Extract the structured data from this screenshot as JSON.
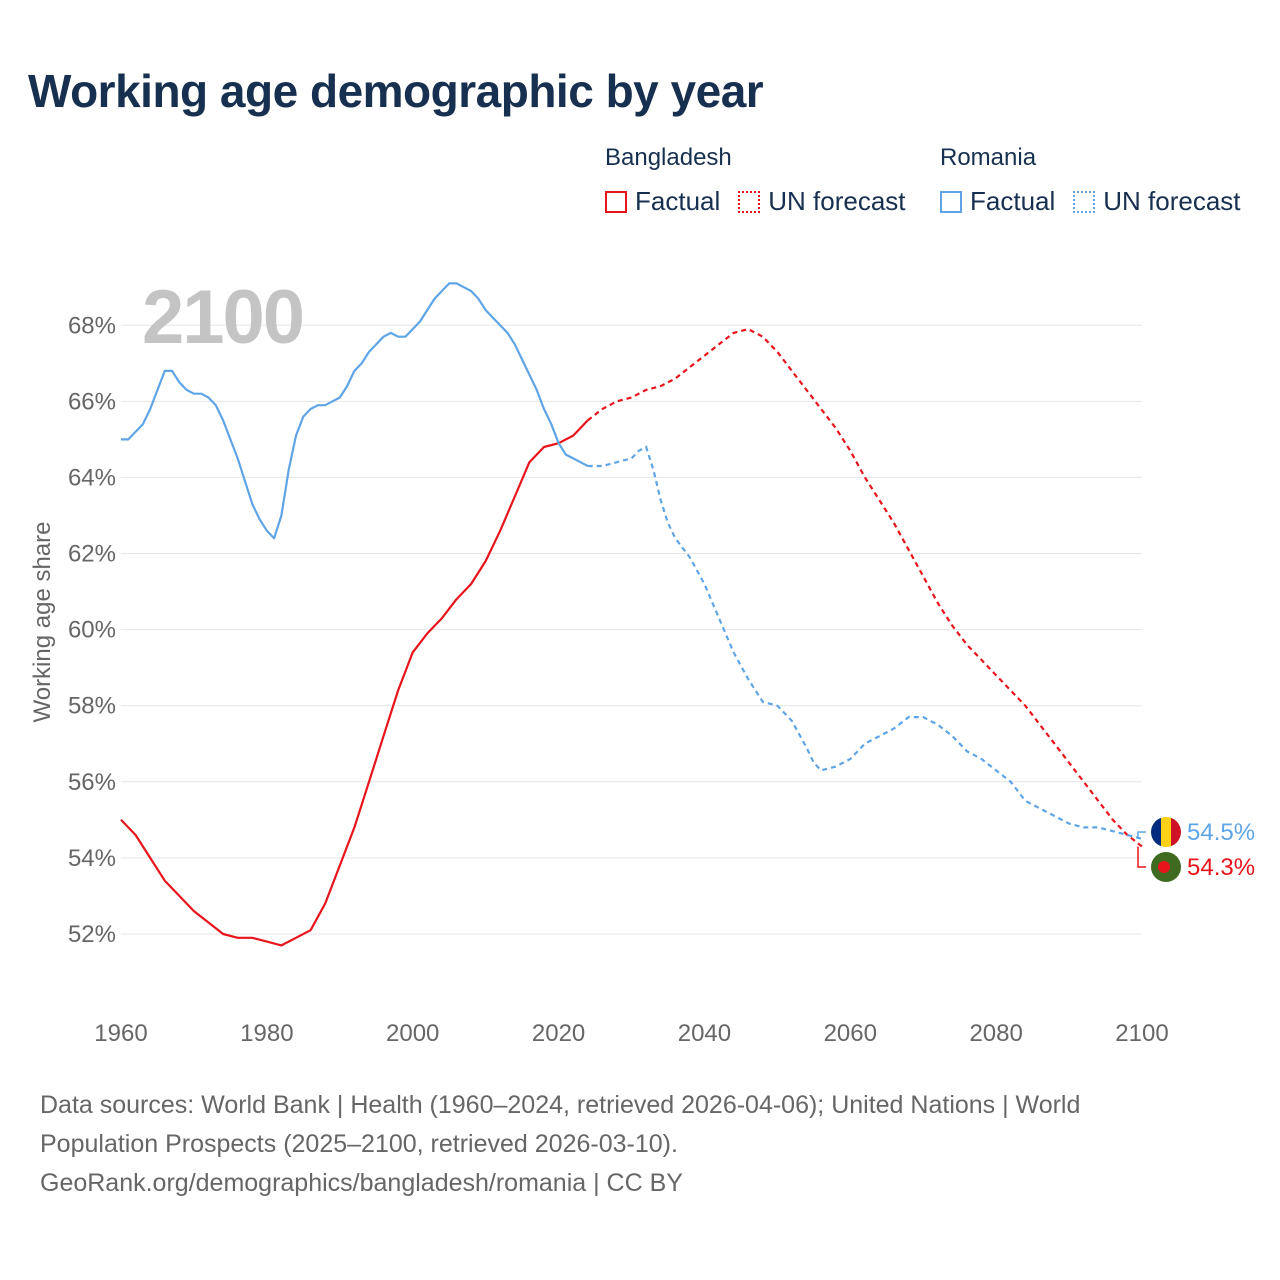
{
  "title": "Working age demographic by year",
  "legend": {
    "bangladesh": {
      "country": "Bangladesh",
      "factual": "Factual",
      "forecast": "UN forecast",
      "color": "#e8141c"
    },
    "romania": {
      "country": "Romania",
      "factual": "Factual",
      "forecast": "UN forecast",
      "color": "#5fa5e6"
    }
  },
  "year_watermark": "2100",
  "source": {
    "line1": "Data sources: World Bank | Health (1960–2024, retrieved 2026-04-06); United Nations | World",
    "line2": "Population Prospects (2025–2100, retrieved 2026-03-10).",
    "line3": "GeoRank.org/demographics/bangladesh/romania | CC BY"
  },
  "chart_data": {
    "type": "line",
    "title": "Working age demographic by year",
    "xlabel": "",
    "ylabel": "Working age share",
    "xlim": [
      1960,
      2100
    ],
    "ylim": [
      51,
      69.4
    ],
    "x_ticks": [
      1960,
      1980,
      2000,
      2020,
      2040,
      2060,
      2080,
      2100
    ],
    "y_ticks": [
      52,
      54,
      56,
      58,
      60,
      62,
      64,
      66,
      68
    ],
    "y_tick_labels": [
      "52%",
      "54%",
      "56%",
      "58%",
      "60%",
      "62%",
      "64%",
      "66%",
      "68%"
    ],
    "grid": true,
    "legend_position": "top-right",
    "series": [
      {
        "name": "Bangladesh",
        "color": "#e8141c",
        "end_label": "54.3%",
        "factual": {
          "x": [
            1960,
            1962,
            1964,
            1966,
            1968,
            1970,
            1972,
            1974,
            1976,
            1978,
            1980,
            1982,
            1984,
            1986,
            1988,
            1990,
            1992,
            1994,
            1996,
            1998,
            2000,
            2002,
            2004,
            2006,
            2008,
            2010,
            2012,
            2014,
            2016,
            2018,
            2020,
            2022,
            2024
          ],
          "y": [
            55.0,
            54.6,
            54.0,
            53.4,
            53.0,
            52.6,
            52.3,
            52.0,
            51.9,
            51.9,
            51.8,
            51.7,
            51.9,
            52.1,
            52.8,
            53.8,
            54.8,
            56.0,
            57.2,
            58.4,
            59.4,
            59.9,
            60.3,
            60.8,
            61.2,
            61.8,
            62.6,
            63.5,
            64.4,
            64.8,
            64.9,
            65.1,
            65.5
          ]
        },
        "forecast": {
          "x": [
            2024,
            2026,
            2028,
            2030,
            2032,
            2034,
            2036,
            2038,
            2040,
            2042,
            2044,
            2046,
            2048,
            2050,
            2052,
            2054,
            2056,
            2058,
            2060,
            2062,
            2064,
            2066,
            2068,
            2070,
            2072,
            2074,
            2076,
            2078,
            2080,
            2082,
            2084,
            2086,
            2088,
            2090,
            2092,
            2094,
            2096,
            2098,
            2100
          ],
          "y": [
            65.5,
            65.8,
            66.0,
            66.1,
            66.3,
            66.4,
            66.6,
            66.9,
            67.2,
            67.5,
            67.8,
            67.9,
            67.7,
            67.3,
            66.8,
            66.3,
            65.8,
            65.3,
            64.7,
            64.0,
            63.4,
            62.8,
            62.1,
            61.4,
            60.7,
            60.1,
            59.6,
            59.2,
            58.8,
            58.4,
            58.0,
            57.5,
            57.0,
            56.5,
            56.0,
            55.5,
            55.0,
            54.6,
            54.3
          ]
        }
      },
      {
        "name": "Romania",
        "color": "#5fa5e6",
        "end_label": "54.5%",
        "factual": {
          "x": [
            1960,
            1961,
            1962,
            1963,
            1964,
            1965,
            1966,
            1967,
            1968,
            1969,
            1970,
            1971,
            1972,
            1973,
            1974,
            1975,
            1976,
            1977,
            1978,
            1979,
            1980,
            1981,
            1982,
            1983,
            1984,
            1985,
            1986,
            1987,
            1988,
            1989,
            1990,
            1991,
            1992,
            1993,
            1994,
            1995,
            1996,
            1997,
            1998,
            1999,
            2000,
            2001,
            2002,
            2003,
            2004,
            2005,
            2006,
            2007,
            2008,
            2009,
            2010,
            2011,
            2012,
            2013,
            2014,
            2015,
            2016,
            2017,
            2018,
            2019,
            2020,
            2021,
            2022,
            2023,
            2024
          ],
          "y": [
            65.0,
            65.0,
            65.2,
            65.4,
            65.8,
            66.3,
            66.8,
            66.8,
            66.5,
            66.3,
            66.2,
            66.2,
            66.1,
            65.9,
            65.5,
            65.0,
            64.5,
            63.9,
            63.3,
            62.9,
            62.6,
            62.4,
            63.0,
            64.2,
            65.1,
            65.6,
            65.8,
            65.9,
            65.9,
            66.0,
            66.1,
            66.4,
            66.8,
            67.0,
            67.3,
            67.5,
            67.7,
            67.8,
            67.7,
            67.7,
            67.9,
            68.1,
            68.4,
            68.7,
            68.9,
            69.1,
            69.1,
            69.0,
            68.9,
            68.7,
            68.4,
            68.2,
            68.0,
            67.8,
            67.5,
            67.1,
            66.7,
            66.3,
            65.8,
            65.4,
            64.9,
            64.6,
            64.5,
            64.4,
            64.3
          ]
        },
        "forecast": {
          "x": [
            2024,
            2026,
            2028,
            2030,
            2031,
            2032,
            2033,
            2034,
            2035,
            2036,
            2038,
            2040,
            2042,
            2044,
            2046,
            2048,
            2050,
            2052,
            2054,
            2055,
            2056,
            2058,
            2060,
            2062,
            2064,
            2066,
            2068,
            2070,
            2072,
            2074,
            2076,
            2078,
            2080,
            2082,
            2084,
            2086,
            2088,
            2090,
            2092,
            2094,
            2096,
            2098,
            2100
          ],
          "y": [
            64.3,
            64.3,
            64.4,
            64.5,
            64.7,
            64.8,
            64.2,
            63.4,
            62.8,
            62.4,
            61.9,
            61.2,
            60.3,
            59.4,
            58.7,
            58.1,
            58.0,
            57.6,
            56.9,
            56.5,
            56.3,
            56.4,
            56.6,
            57.0,
            57.2,
            57.4,
            57.7,
            57.7,
            57.5,
            57.2,
            56.8,
            56.6,
            56.3,
            56.0,
            55.5,
            55.3,
            55.1,
            54.9,
            54.8,
            54.8,
            54.7,
            54.6,
            54.5
          ]
        }
      }
    ]
  }
}
